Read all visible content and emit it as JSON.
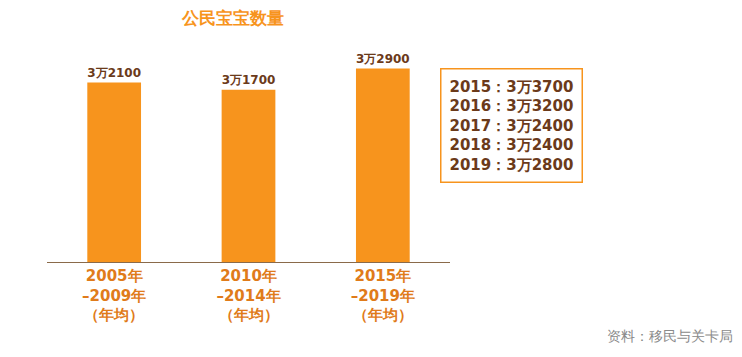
{
  "chart_data": {
    "type": "bar",
    "title": "公民宝宝数量",
    "categories": [
      "2005年\n–2009年\n（年均）",
      "2010年\n–2014年\n（年均）",
      "2015年\n–2019年\n（年均）"
    ],
    "values": [
      32100,
      31700,
      32900
    ],
    "value_labels": [
      "3万2100",
      "3万1700",
      "3万2900"
    ],
    "data_labels": true,
    "color": "#f7941d",
    "ylim": [
      22000,
      34500
    ],
    "tick_labels": "x",
    "grid": false,
    "annotations": [
      "2015：3万3700",
      "2016：3万3200",
      "2017：3万2400",
      "2018：3万2400",
      "2019：3万2800"
    ],
    "source": "资料：移民与关卡局"
  }
}
